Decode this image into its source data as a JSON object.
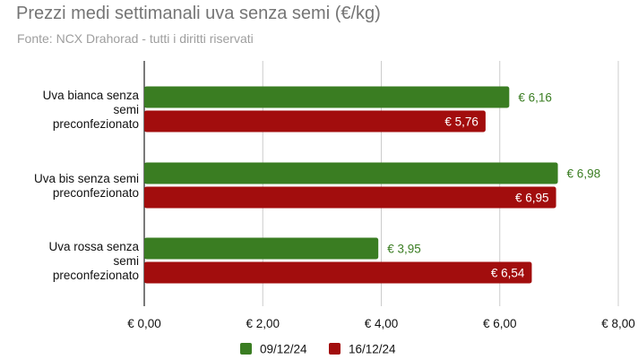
{
  "chart_data": {
    "type": "bar",
    "orientation": "horizontal",
    "title": "Prezzi medi settimanali uva senza semi (€/kg)",
    "subtitle": "Fonte: NCX Drahorad - tutti i diritti riservati",
    "categories": [
      [
        "Uva bianca senza",
        "semi",
        "preconfezionato"
      ],
      [
        "Uva bis senza semi",
        "preconfezionato"
      ],
      [
        "Uva rossa senza",
        "semi",
        "preconfezionato"
      ]
    ],
    "series": [
      {
        "name": "09/12/24",
        "color": "#3a7d22",
        "values": [
          6.16,
          6.98,
          3.95
        ],
        "labels": [
          "€ 6,16",
          "€ 6,98",
          "€ 3,95"
        ],
        "label_position": "outside"
      },
      {
        "name": "16/12/24",
        "color": "#a20d0d",
        "values": [
          5.76,
          6.95,
          6.54
        ],
        "labels": [
          "€ 5,76",
          "€ 6,95",
          "€ 6,54"
        ],
        "label_position": "inside"
      }
    ],
    "xlim": [
      0,
      8
    ],
    "xticks": [
      0,
      2,
      4,
      6,
      8
    ],
    "xtick_labels": [
      "€ 0,00",
      "€ 2,00",
      "€ 4,00",
      "€ 6,00",
      "€ 8,00"
    ],
    "grid": true,
    "legend_position": "bottom"
  }
}
